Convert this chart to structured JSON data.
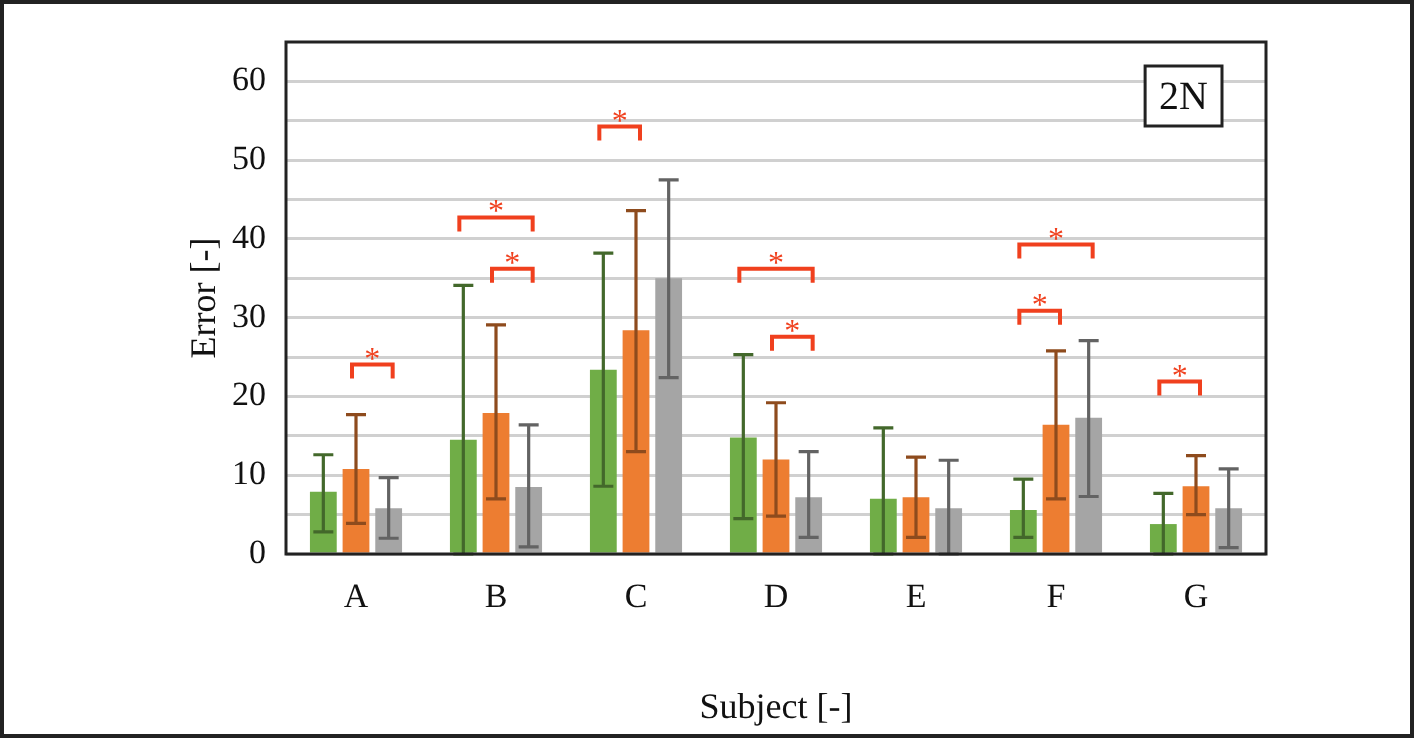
{
  "chart_data": {
    "type": "bar",
    "xlabel": "Subject [-]",
    "ylabel": "Error [-]",
    "categories": [
      "A",
      "B",
      "C",
      "D",
      "E",
      "F",
      "G"
    ],
    "series": [
      {
        "color": "#70ad47",
        "values": [
          7.9,
          14.5,
          23.4,
          14.8,
          7.0,
          5.6,
          3.8
        ],
        "errors": [
          [
            2.8,
            12.6
          ],
          [
            0,
            34.1
          ],
          [
            8.6,
            38.2
          ],
          [
            4.5,
            25.3
          ],
          [
            0,
            16.0
          ],
          [
            2.1,
            9.5
          ],
          [
            0,
            7.7
          ]
        ]
      },
      {
        "color": "#ed7d31",
        "values": [
          10.8,
          17.9,
          28.4,
          12.0,
          7.2,
          16.4,
          8.6
        ],
        "errors": [
          [
            3.9,
            17.7
          ],
          [
            7.0,
            29.1
          ],
          [
            13.0,
            43.6
          ],
          [
            4.8,
            19.2
          ],
          [
            2.1,
            12.3
          ],
          [
            7.0,
            25.8
          ],
          [
            5.0,
            12.5
          ]
        ]
      },
      {
        "color": "#a5a5a5",
        "values": [
          5.8,
          8.5,
          35.0,
          7.2,
          5.8,
          17.3,
          5.8
        ],
        "errors": [
          [
            2.0,
            9.7
          ],
          [
            0.9,
            16.4
          ],
          [
            22.4,
            47.5
          ],
          [
            2.1,
            13.0
          ],
          [
            0,
            11.9
          ],
          [
            7.3,
            27.1
          ],
          [
            0.8,
            10.8
          ]
        ]
      }
    ],
    "ylim": [
      0,
      65
    ],
    "yticks": [
      0,
      {
        "value": 5,
        "label": null
      },
      10,
      {
        "value": 15,
        "label": null
      },
      20,
      {
        "value": 25,
        "label": null
      },
      30,
      {
        "value": 35,
        "label": null
      },
      40,
      {
        "value": 45,
        "label": null
      },
      50,
      {
        "value": 55,
        "label": null
      },
      60
    ],
    "grid": "y",
    "legend": false,
    "annotations": [
      "2N",
      "*",
      "*",
      "*",
      "*",
      "*",
      "*",
      "*",
      "*",
      "*"
    ]
  }
}
